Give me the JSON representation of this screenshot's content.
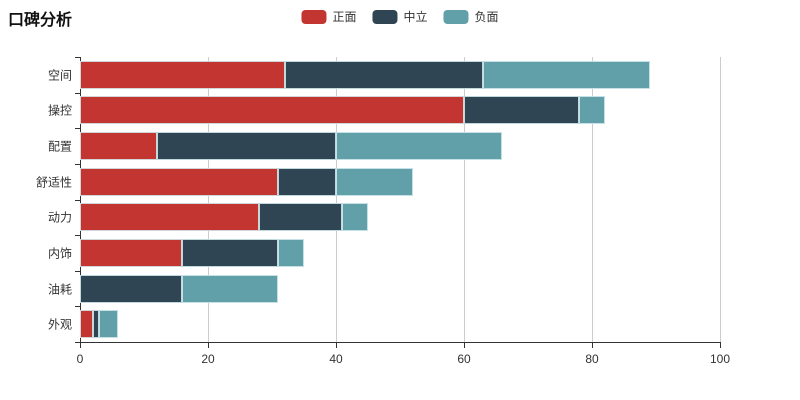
{
  "title": "口碑分析",
  "legend": [
    {
      "label": "正面",
      "color": "#c23531"
    },
    {
      "label": "中立",
      "color": "#2f4554"
    },
    {
      "label": "负面",
      "color": "#61a0a8"
    }
  ],
  "colors": {
    "positive": "#c23531",
    "neutral": "#2f4554",
    "negative": "#61a0a8",
    "grid": "#cccccc",
    "axis": "#333333",
    "text": "#333333"
  },
  "chart_data": {
    "type": "bar",
    "orientation": "horizontal",
    "stacked": true,
    "title": "口碑分析",
    "categories": [
      "空间",
      "操控",
      "配置",
      "舒适性",
      "动力",
      "内饰",
      "油耗",
      "外观"
    ],
    "series": [
      {
        "name": "正面",
        "color": "#c23531",
        "values": [
          32,
          60,
          12,
          31,
          28,
          16,
          0,
          2
        ]
      },
      {
        "name": "中立",
        "color": "#2f4554",
        "values": [
          31,
          18,
          28,
          9,
          13,
          15,
          16,
          1
        ]
      },
      {
        "name": "负面",
        "color": "#61a0a8",
        "values": [
          26,
          4,
          26,
          12,
          4,
          4,
          15,
          3
        ]
      }
    ],
    "totals": [
      89,
      82,
      66,
      52,
      45,
      35,
      31,
      6
    ],
    "xlim": [
      0,
      100
    ],
    "xticks": [
      0,
      20,
      40,
      60,
      80,
      100
    ],
    "xtick_labels": [
      "0",
      "20",
      "40",
      "60",
      "80",
      "100"
    ],
    "grid": true,
    "legend_position": "top-center"
  }
}
